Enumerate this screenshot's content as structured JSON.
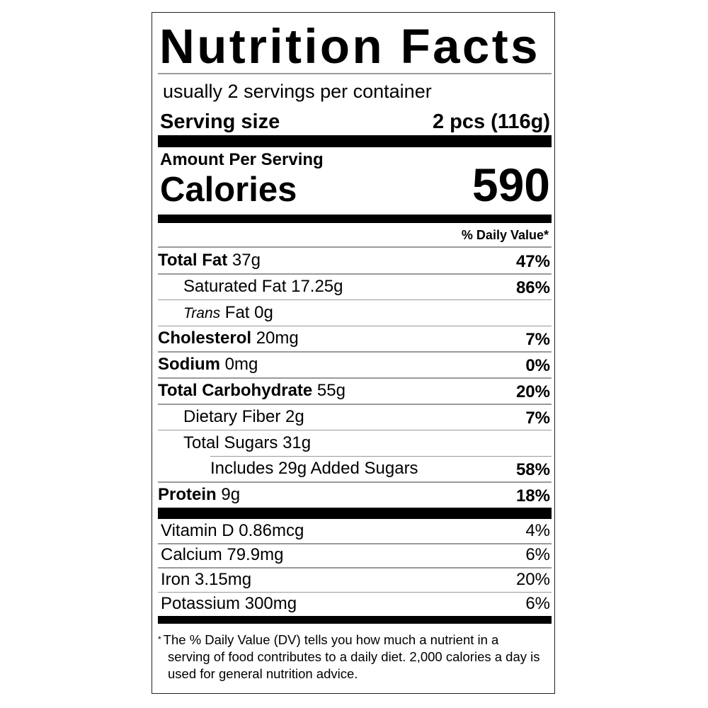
{
  "title": "Nutrition Facts",
  "servings_per_container": "usually 2 servings per container",
  "serving_size": {
    "label": "Serving size",
    "value": "2 pcs (116g)"
  },
  "amount_per_serving": "Amount Per Serving",
  "calories": {
    "label": "Calories",
    "value": "590"
  },
  "daily_value_header": "% Daily Value*",
  "nutrients": [
    {
      "name": "Total Fat",
      "amount": "37g",
      "dv": "47%",
      "bold": true,
      "indent": 0
    },
    {
      "name": "Saturated Fat",
      "amount": "17.25g",
      "dv": "86%",
      "bold": false,
      "indent": 1
    },
    {
      "name": "Trans",
      "name_suffix": "Fat",
      "amount": "0g",
      "dv": "",
      "bold": false,
      "indent": 1,
      "italic": true
    },
    {
      "name": "Cholesterol",
      "amount": "20mg",
      "dv": "7%",
      "bold": true,
      "indent": 0
    },
    {
      "name": "Sodium",
      "amount": "0mg",
      "dv": "0%",
      "bold": true,
      "indent": 0
    },
    {
      "name": "Total Carbohydrate",
      "amount": "55g",
      "dv": "20%",
      "bold": true,
      "indent": 0
    },
    {
      "name": "Dietary Fiber",
      "amount": "2g",
      "dv": "7%",
      "bold": false,
      "indent": 1
    },
    {
      "name": "Total Sugars",
      "amount": "31g",
      "dv": "",
      "bold": false,
      "indent": 1
    },
    {
      "name": "Includes 29g Added Sugars",
      "amount": "",
      "dv": "58%",
      "bold": false,
      "indent": 2
    },
    {
      "name": "Protein",
      "amount": "9g",
      "dv": "18%",
      "bold": true,
      "indent": 0
    }
  ],
  "vitamins": [
    {
      "name": "Vitamin D",
      "amount": "0.86mcg",
      "dv": "4%"
    },
    {
      "name": "Calcium",
      "amount": "79.9mg",
      "dv": "6%"
    },
    {
      "name": "Iron",
      "amount": "3.15mg",
      "dv": "20%"
    },
    {
      "name": "Potassium",
      "amount": "300mg",
      "dv": "6%"
    }
  ],
  "footnote": {
    "asterisk": "*",
    "text": "The % Daily Value (DV) tells you how much a nutrient in a serving of food contributes to a daily diet. 2,000 calories a day is used for general nutrition advice."
  }
}
